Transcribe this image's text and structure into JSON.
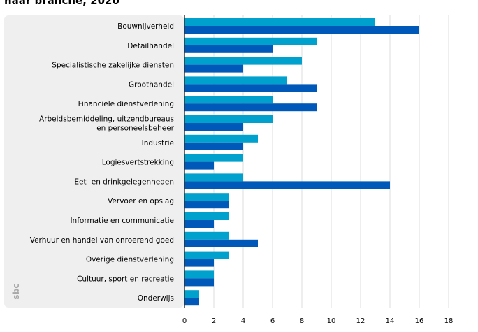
{
  "title": "naar branche, 2020",
  "colors": {
    "series_light": "#00a1cd",
    "series_dark": "#0058b8",
    "grid": "#dcdcdc",
    "panel": "#efefef",
    "axis": "#333333",
    "logo": "#a8a8a8"
  },
  "logo": {
    "icon": "cbs-logo-icon",
    "text": "cbs"
  },
  "chart_data": {
    "type": "bar",
    "orientation": "horizontal",
    "categories": [
      "Bouwnijverheid",
      "Detailhandel",
      "Specialistische zakelijke diensten",
      "Groothandel",
      "Financiële dienstverlening",
      "Arbeidsbemiddeling, uitzendbureaus\nen personeelsbeheer",
      "Industrie",
      "Logiesvertstrekking",
      "Eet- en drinkgelegenheden",
      "Vervoer en opslag",
      "Informatie en communicatie",
      "Verhuur en handel van onroerend goed",
      "Overige dienstverlening",
      "Cultuur, sport en recreatie",
      "Onderwijs"
    ],
    "series": [
      {
        "values": [
          13,
          9,
          8,
          7,
          6,
          6,
          5,
          4,
          4,
          3,
          3,
          3,
          3,
          2,
          1
        ]
      },
      {
        "values": [
          16,
          6,
          4,
          9,
          9,
          4,
          4,
          2,
          14,
          3,
          2,
          5,
          2,
          2,
          1
        ]
      }
    ],
    "xlim": [
      0,
      18
    ],
    "xticks": [
      0,
      2,
      4,
      6,
      8,
      10,
      12,
      14,
      16,
      18
    ],
    "grid": true,
    "legend": "none"
  }
}
